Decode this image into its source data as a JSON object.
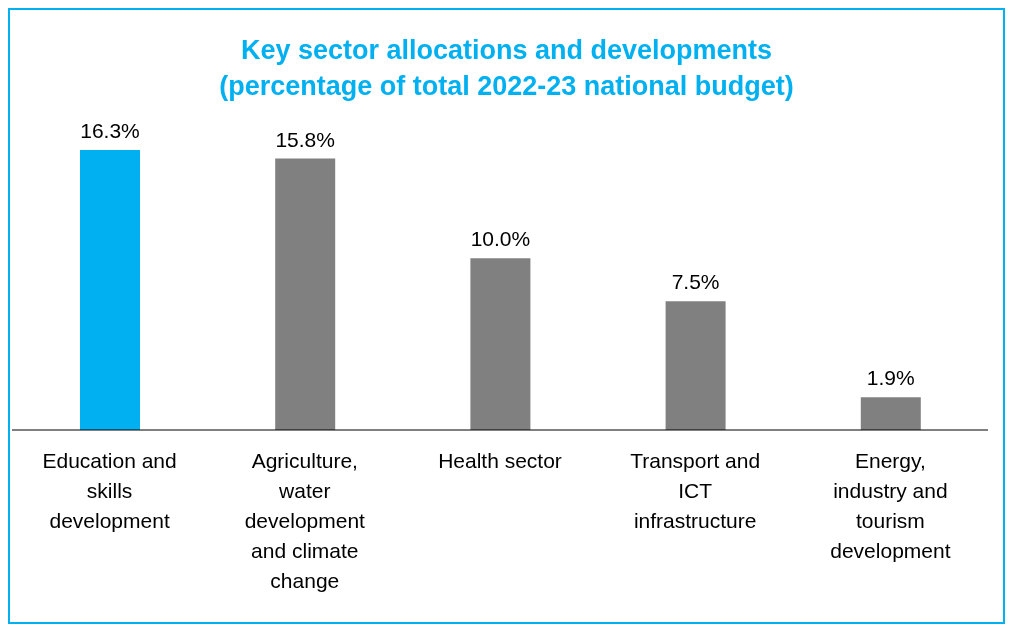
{
  "chart_data": {
    "type": "bar",
    "title": "Key sector allocations and developments\n(percentage of total 2022-23 national budget)",
    "categories": [
      "Education and skills development",
      "Agriculture, water development and climate change",
      "Health sector",
      "Transport and ICT infrastructure",
      "Energy, industry and tourism development"
    ],
    "values": [
      16.3,
      15.8,
      10.0,
      7.5,
      1.9
    ],
    "colors": [
      "#00b0f0",
      "#808080",
      "#808080",
      "#808080",
      "#808080"
    ],
    "value_labels": [
      "16.3%",
      "15.8%",
      "10.0%",
      "7.5%",
      "1.9%"
    ]
  }
}
